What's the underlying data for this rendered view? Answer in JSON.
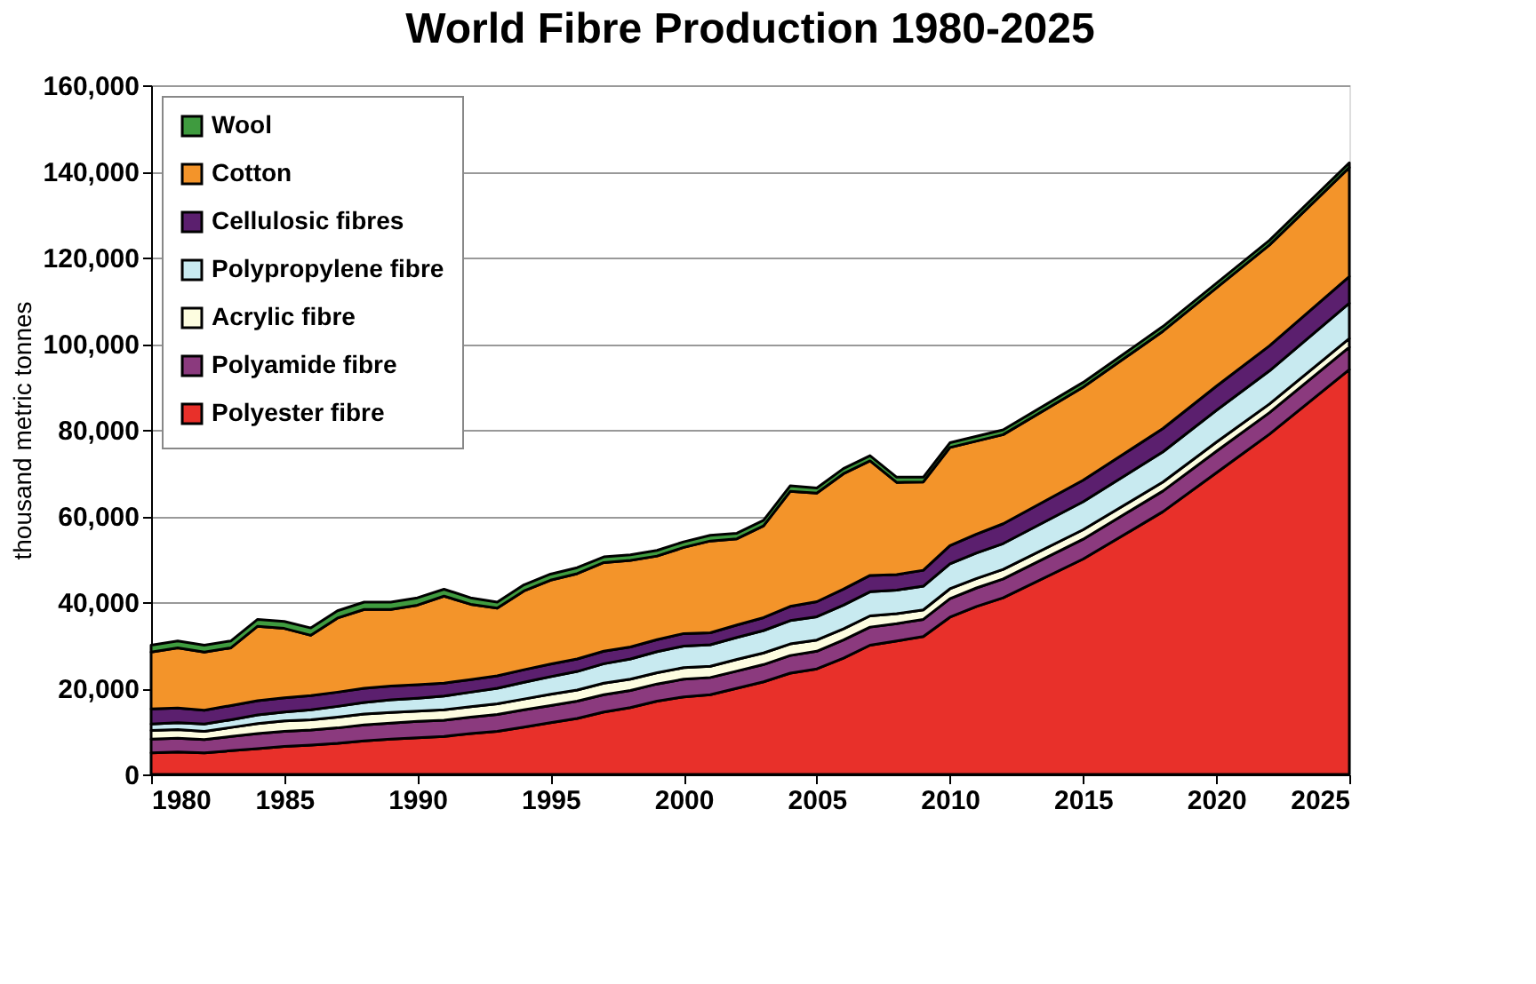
{
  "chart_data": {
    "type": "area",
    "stacked": true,
    "title": "World Fibre Production 1980-2025",
    "ylabel": "thousand metric tonnes",
    "x": [
      1980,
      1981,
      1982,
      1983,
      1984,
      1985,
      1986,
      1987,
      1988,
      1989,
      1990,
      1991,
      1992,
      1993,
      1994,
      1995,
      1996,
      1997,
      1998,
      1999,
      2000,
      2001,
      2002,
      2003,
      2004,
      2005,
      2006,
      2007,
      2008,
      2009,
      2010,
      2011,
      2012,
      2015,
      2018,
      2020,
      2022,
      2025
    ],
    "series": [
      {
        "name": "Polyester fibre",
        "color": "#e8302a",
        "values": [
          5000,
          5200,
          5000,
          5500,
          6000,
          6500,
          6800,
          7200,
          7800,
          8200,
          8500,
          8800,
          9500,
          10000,
          11000,
          12000,
          13000,
          14500,
          15500,
          17000,
          18000,
          18500,
          20000,
          21500,
          23500,
          24500,
          27000,
          30000,
          31000,
          32000,
          36500,
          39000,
          41000,
          50000,
          61000,
          70000,
          79000,
          94000
        ]
      },
      {
        "name": "Polyamide fibre",
        "color": "#8b3a7e",
        "values": [
          3200,
          3200,
          3100,
          3300,
          3500,
          3500,
          3500,
          3600,
          3700,
          3700,
          3800,
          3800,
          3800,
          3900,
          4000,
          4000,
          4000,
          4000,
          4000,
          4000,
          4100,
          4000,
          4000,
          4000,
          4100,
          4100,
          4200,
          4200,
          4000,
          4000,
          4300,
          4300,
          4400,
          4600,
          4800,
          5000,
          5000,
          5200
        ]
      },
      {
        "name": "Acrylic fibre",
        "color": "#fdfde0",
        "values": [
          2000,
          2000,
          1900,
          2100,
          2300,
          2400,
          2400,
          2500,
          2500,
          2500,
          2400,
          2400,
          2400,
          2500,
          2500,
          2600,
          2600,
          2700,
          2600,
          2600,
          2700,
          2600,
          2700,
          2700,
          2700,
          2600,
          2600,
          2600,
          2300,
          2200,
          2300,
          2200,
          2200,
          2200,
          2100,
          2100,
          2000,
          2000
        ]
      },
      {
        "name": "Polypropylene fibre",
        "color": "#c8eaf0",
        "values": [
          1500,
          1600,
          1700,
          1800,
          2000,
          2100,
          2300,
          2500,
          2700,
          2900,
          3000,
          3200,
          3400,
          3600,
          3900,
          4100,
          4300,
          4500,
          4700,
          4900,
          5000,
          5000,
          5100,
          5200,
          5400,
          5400,
          5500,
          5600,
          5500,
          5500,
          5800,
          5900,
          6000,
          6500,
          7000,
          7400,
          7700,
          8200
        ]
      },
      {
        "name": "Cellulosic fibres",
        "color": "#5b1f6e",
        "values": [
          3500,
          3400,
          3200,
          3300,
          3300,
          3300,
          3300,
          3300,
          3300,
          3200,
          3100,
          3000,
          2900,
          2900,
          2900,
          2900,
          2900,
          2900,
          2800,
          2800,
          2900,
          2800,
          2900,
          3000,
          3300,
          3500,
          3700,
          3800,
          3600,
          3700,
          4200,
          4400,
          4600,
          5000,
          5400,
          5600,
          5800,
          6200
        ]
      },
      {
        "name": "Cotton",
        "color": "#f3942a",
        "values": [
          13200,
          14000,
          13500,
          13400,
          17300,
          16100,
          14000,
          17200,
          18300,
          17800,
          18500,
          20200,
          17500,
          15700,
          18300,
          19500,
          19800,
          20600,
          20100,
          19400,
          20000,
          21300,
          20000,
          21300,
          26700,
          25200,
          26800,
          26600,
          21400,
          20500,
          22800,
          21600,
          20700,
          21600,
          22600,
          22800,
          23400,
          25300
        ]
      },
      {
        "name": "Wool",
        "color": "#3f9b3f",
        "values": [
          1600,
          1600,
          1600,
          1600,
          1600,
          1600,
          1700,
          1700,
          1700,
          1700,
          1700,
          1600,
          1500,
          1400,
          1400,
          1400,
          1400,
          1300,
          1300,
          1300,
          1300,
          1300,
          1300,
          1300,
          1300,
          1200,
          1200,
          1200,
          1200,
          1100,
          1100,
          1100,
          1100,
          1100,
          1100,
          1100,
          1100,
          1100
        ]
      }
    ],
    "xlim": [
      1980,
      2025
    ],
    "xticks": [
      1980,
      1985,
      1990,
      1995,
      2000,
      2005,
      2010,
      2015,
      2020,
      2025
    ],
    "ylim": [
      0,
      160000
    ],
    "yticks": [
      0,
      {
        "value": 20000,
        "label": "20,000"
      },
      {
        "value": 40000,
        "label": "40,000"
      },
      {
        "value": 60000,
        "label": "60,000"
      },
      {
        "value": 80000,
        "label": "80,000"
      },
      {
        "value": 100000,
        "label": "100,000"
      },
      {
        "value": 120000,
        "label": "120,000"
      },
      {
        "value": 140000,
        "label": "140,000"
      },
      {
        "value": 160000,
        "label": "160,000"
      }
    ],
    "grid": "y",
    "legend": "top left"
  }
}
